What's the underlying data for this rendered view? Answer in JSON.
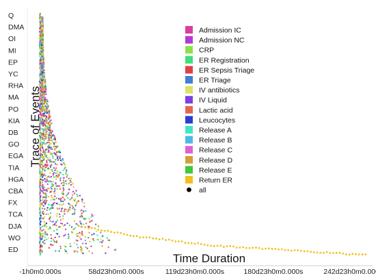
{
  "chart_data": {
    "type": "scatter",
    "title": "",
    "xlabel": "Time Duration",
    "ylabel": "Trace of Events",
    "x_tick_labels": [
      "-1h0m0.000s",
      "58d23h0m0.000s",
      "119d23h0m0.000s",
      "180d23h0m0.000s",
      "242d23h0m0.000s"
    ],
    "x_ticks_days": [
      0,
      59,
      120,
      181,
      243
    ],
    "xlim_days": [
      -10,
      258
    ],
    "y_categories": [
      "Q",
      "DMA",
      "OI",
      "MI",
      "EP",
      "YC",
      "RHA",
      "MA",
      "PO",
      "KIA",
      "DB",
      "GO",
      "EGA",
      "TIA",
      "HGA",
      "CBA",
      "FX",
      "TCA",
      "DJA",
      "WO",
      "ED"
    ],
    "legend_position": "top-right",
    "grid": false,
    "series": [
      {
        "name": "Admission IC",
        "color": "#d63fa0"
      },
      {
        "name": "Admission NC",
        "color": "#b13ad4"
      },
      {
        "name": "CRP",
        "color": "#8ee04a"
      },
      {
        "name": "ER Registration",
        "color": "#3ee07a"
      },
      {
        "name": "ER Sepsis Triage",
        "color": "#e0404a"
      },
      {
        "name": "ER Triage",
        "color": "#3f7fd6"
      },
      {
        "name": "IV antibiotics",
        "color": "#d9e26a"
      },
      {
        "name": "IV Liquid",
        "color": "#7d3fe0"
      },
      {
        "name": "Lactic acid",
        "color": "#e06a50"
      },
      {
        "name": "Leucocytes",
        "color": "#2a3fd0"
      },
      {
        "name": "Release A",
        "color": "#3fe6c8"
      },
      {
        "name": "Release B",
        "color": "#4fb8e6"
      },
      {
        "name": "Release C",
        "color": "#e060d6"
      },
      {
        "name": "Release D",
        "color": "#d0a03a"
      },
      {
        "name": "Release E",
        "color": "#3fc83a"
      },
      {
        "name": "Return ER",
        "color": "#f0c020"
      },
      {
        "name": "all",
        "color": "#000000",
        "marker": "circle"
      }
    ],
    "return_er_trail": {
      "series": "Return ER",
      "x_days": [
        30,
        45,
        60,
        75,
        90,
        105,
        120,
        135,
        150,
        165,
        180,
        195,
        210,
        225,
        240,
        255
      ],
      "y_index": [
        18.0,
        18.3,
        18.6,
        18.9,
        19.1,
        19.3,
        19.5,
        19.7,
        19.8,
        19.9,
        20.0,
        20.1,
        20.2,
        20.3,
        20.4,
        20.5
      ]
    }
  }
}
